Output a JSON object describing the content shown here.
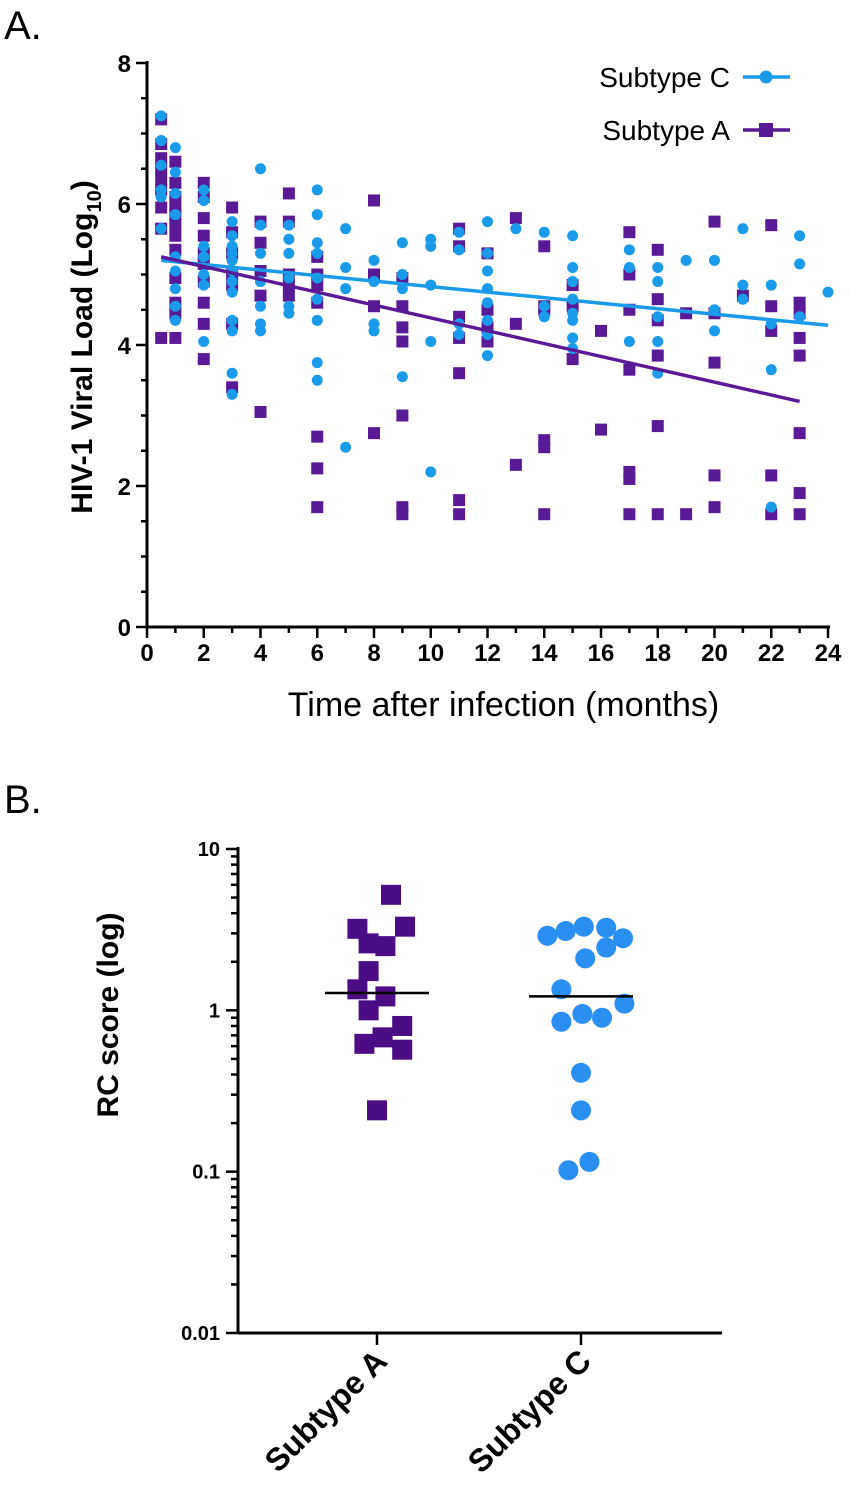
{
  "chart_data": [
    {
      "panel": "A.",
      "type": "scatter",
      "xlabel": "Time after infection (months)",
      "ylabel_main": "HIV-1 Viral Load (Log",
      "ylabel_sub": "10",
      "ylabel_close": ")",
      "xlim": [
        0,
        24
      ],
      "ylim": [
        0,
        8
      ],
      "xticks": [
        0,
        2,
        4,
        6,
        8,
        10,
        12,
        14,
        16,
        18,
        20,
        22,
        24
      ],
      "yticks": [
        0,
        2,
        4,
        6,
        8
      ],
      "legend_position": "top-right",
      "colors": {
        "subtype_c": "#1a9bea",
        "subtype_a": "#5a1a96"
      },
      "series": [
        {
          "name": "Subtype C",
          "marker": "circle",
          "points": [
            [
              0.5,
              7.25
            ],
            [
              0.5,
              6.9
            ],
            [
              0.5,
              6.55
            ],
            [
              0.5,
              6.2
            ],
            [
              0.5,
              6.1
            ],
            [
              0.5,
              5.65
            ],
            [
              1,
              6.8
            ],
            [
              1,
              6.45
            ],
            [
              1,
              6.15
            ],
            [
              1,
              5.85
            ],
            [
              1,
              5.25
            ],
            [
              1,
              5.05
            ],
            [
              1,
              4.8
            ],
            [
              1,
              4.55
            ],
            [
              1,
              4.35
            ],
            [
              2,
              6.2
            ],
            [
              2,
              6.05
            ],
            [
              2,
              5.4
            ],
            [
              2,
              5.25
            ],
            [
              2,
              5.0
            ],
            [
              2,
              4.85
            ],
            [
              2,
              4.05
            ],
            [
              3,
              5.75
            ],
            [
              3,
              5.55
            ],
            [
              3,
              5.4
            ],
            [
              3,
              5.3
            ],
            [
              3,
              5.2
            ],
            [
              3,
              5.05
            ],
            [
              3,
              4.9
            ],
            [
              3,
              4.75
            ],
            [
              3,
              4.35
            ],
            [
              3,
              4.2
            ],
            [
              3,
              3.6
            ],
            [
              3,
              3.3
            ],
            [
              4,
              6.5
            ],
            [
              4,
              5.7
            ],
            [
              4,
              5.3
            ],
            [
              4,
              4.9
            ],
            [
              4,
              4.55
            ],
            [
              4,
              4.3
            ],
            [
              4,
              4.2
            ],
            [
              5,
              5.7
            ],
            [
              5,
              5.5
            ],
            [
              5,
              5.3
            ],
            [
              5,
              4.95
            ],
            [
              5,
              4.55
            ],
            [
              5,
              4.45
            ],
            [
              6,
              6.2
            ],
            [
              6,
              5.85
            ],
            [
              6,
              5.45
            ],
            [
              6,
              5.3
            ],
            [
              6,
              4.95
            ],
            [
              6,
              4.65
            ],
            [
              6,
              4.35
            ],
            [
              6,
              3.75
            ],
            [
              6,
              3.5
            ],
            [
              7,
              5.65
            ],
            [
              7,
              5.1
            ],
            [
              7,
              4.8
            ],
            [
              7,
              2.55
            ],
            [
              8,
              5.2
            ],
            [
              8,
              4.9
            ],
            [
              8,
              4.3
            ],
            [
              8,
              4.2
            ],
            [
              9,
              5.45
            ],
            [
              9,
              5.0
            ],
            [
              9,
              4.8
            ],
            [
              9,
              3.55
            ],
            [
              10,
              5.5
            ],
            [
              10,
              5.4
            ],
            [
              10,
              4.85
            ],
            [
              10,
              4.05
            ],
            [
              10,
              2.2
            ],
            [
              11,
              5.6
            ],
            [
              11,
              5.35
            ],
            [
              11,
              4.3
            ],
            [
              11,
              4.15
            ],
            [
              12,
              5.75
            ],
            [
              12,
              5.3
            ],
            [
              12,
              5.05
            ],
            [
              12,
              4.8
            ],
            [
              12,
              4.6
            ],
            [
              12,
              4.35
            ],
            [
              12,
              4.15
            ],
            [
              12,
              3.85
            ],
            [
              13,
              5.65
            ],
            [
              14,
              5.6
            ],
            [
              14,
              4.55
            ],
            [
              14,
              4.4
            ],
            [
              15,
              5.55
            ],
            [
              15,
              5.1
            ],
            [
              15,
              4.9
            ],
            [
              15,
              4.65
            ],
            [
              15,
              4.45
            ],
            [
              15,
              4.35
            ],
            [
              15,
              4.1
            ],
            [
              15,
              3.95
            ],
            [
              17,
              5.35
            ],
            [
              17,
              5.1
            ],
            [
              17,
              4.05
            ],
            [
              18,
              5.1
            ],
            [
              18,
              4.9
            ],
            [
              18,
              4.4
            ],
            [
              18,
              4.05
            ],
            [
              18,
              3.6
            ],
            [
              19,
              5.2
            ],
            [
              20,
              5.2
            ],
            [
              20,
              4.5
            ],
            [
              20,
              4.2
            ],
            [
              21,
              5.65
            ],
            [
              21,
              4.85
            ],
            [
              21,
              4.65
            ],
            [
              22,
              4.85
            ],
            [
              22,
              4.3
            ],
            [
              22,
              3.65
            ],
            [
              22,
              1.7
            ],
            [
              23,
              5.55
            ],
            [
              23,
              5.15
            ],
            [
              23,
              4.4
            ],
            [
              24,
              4.75
            ]
          ],
          "trend": {
            "x": [
              0.5,
              24
            ],
            "y": [
              5.2,
              4.28
            ]
          }
        },
        {
          "name": "Subtype A",
          "marker": "square",
          "points": [
            [
              0.5,
              7.2
            ],
            [
              0.5,
              6.85
            ],
            [
              0.5,
              6.65
            ],
            [
              0.5,
              6.5
            ],
            [
              0.5,
              6.35
            ],
            [
              0.5,
              6.2
            ],
            [
              0.5,
              5.95
            ],
            [
              0.5,
              5.65
            ],
            [
              0.5,
              4.1
            ],
            [
              1,
              6.6
            ],
            [
              1,
              6.3
            ],
            [
              1,
              6.1
            ],
            [
              1,
              5.95
            ],
            [
              1,
              5.85
            ],
            [
              1,
              5.7
            ],
            [
              1,
              5.55
            ],
            [
              1,
              5.35
            ],
            [
              1,
              4.95
            ],
            [
              1,
              4.6
            ],
            [
              1,
              4.45
            ],
            [
              1,
              4.1
            ],
            [
              2,
              6.3
            ],
            [
              2,
              6.1
            ],
            [
              2,
              5.8
            ],
            [
              2,
              5.55
            ],
            [
              2,
              5.3
            ],
            [
              2,
              5.15
            ],
            [
              2,
              4.9
            ],
            [
              2,
              4.6
            ],
            [
              2,
              4.3
            ],
            [
              2,
              3.8
            ],
            [
              3,
              5.95
            ],
            [
              3,
              5.6
            ],
            [
              3,
              5.3
            ],
            [
              3,
              5.0
            ],
            [
              3,
              4.85
            ],
            [
              3,
              4.3
            ],
            [
              3,
              3.4
            ],
            [
              4,
              5.75
            ],
            [
              4,
              5.45
            ],
            [
              4,
              5.05
            ],
            [
              4,
              4.7
            ],
            [
              4,
              3.05
            ],
            [
              5,
              6.15
            ],
            [
              5,
              5.75
            ],
            [
              5,
              5.0
            ],
            [
              5,
              4.85
            ],
            [
              5,
              4.7
            ],
            [
              6,
              5.25
            ],
            [
              6,
              5.0
            ],
            [
              6,
              4.85
            ],
            [
              6,
              4.6
            ],
            [
              6,
              2.7
            ],
            [
              6,
              2.25
            ],
            [
              6,
              1.7
            ],
            [
              8,
              6.05
            ],
            [
              8,
              5.0
            ],
            [
              8,
              4.55
            ],
            [
              8,
              2.75
            ],
            [
              9,
              4.95
            ],
            [
              9,
              4.55
            ],
            [
              9,
              4.25
            ],
            [
              9,
              4.05
            ],
            [
              9,
              3.0
            ],
            [
              9,
              1.7
            ],
            [
              9,
              1.6
            ],
            [
              11,
              5.65
            ],
            [
              11,
              5.4
            ],
            [
              11,
              4.4
            ],
            [
              11,
              4.1
            ],
            [
              11,
              3.6
            ],
            [
              11,
              1.8
            ],
            [
              11,
              1.6
            ],
            [
              12,
              5.3
            ],
            [
              12,
              4.5
            ],
            [
              12,
              4.25
            ],
            [
              12,
              4.05
            ],
            [
              13,
              5.8
            ],
            [
              13,
              4.3
            ],
            [
              13,
              2.3
            ],
            [
              14,
              5.4
            ],
            [
              14,
              4.55
            ],
            [
              14,
              4.5
            ],
            [
              14,
              2.65
            ],
            [
              14,
              2.55
            ],
            [
              14,
              1.6
            ],
            [
              15,
              4.85
            ],
            [
              15,
              4.55
            ],
            [
              15,
              3.8
            ],
            [
              16,
              4.2
            ],
            [
              16,
              2.8
            ],
            [
              17,
              5.6
            ],
            [
              17,
              5.0
            ],
            [
              17,
              4.5
            ],
            [
              17,
              3.65
            ],
            [
              17,
              2.2
            ],
            [
              17,
              2.1
            ],
            [
              17,
              1.6
            ],
            [
              18,
              5.35
            ],
            [
              18,
              4.65
            ],
            [
              18,
              4.35
            ],
            [
              18,
              3.85
            ],
            [
              18,
              2.85
            ],
            [
              18,
              1.6
            ],
            [
              19,
              4.45
            ],
            [
              19,
              1.6
            ],
            [
              20,
              5.75
            ],
            [
              20,
              4.45
            ],
            [
              20,
              3.75
            ],
            [
              20,
              2.15
            ],
            [
              20,
              1.7
            ],
            [
              21,
              4.7
            ],
            [
              22,
              5.7
            ],
            [
              22,
              4.55
            ],
            [
              22,
              4.2
            ],
            [
              22,
              2.15
            ],
            [
              22,
              1.6
            ],
            [
              23,
              4.6
            ],
            [
              23,
              4.45
            ],
            [
              23,
              4.1
            ],
            [
              23,
              3.85
            ],
            [
              23,
              2.75
            ],
            [
              23,
              1.9
            ],
            [
              23,
              1.6
            ]
          ],
          "trend": {
            "x": [
              0.5,
              23
            ],
            "y": [
              5.25,
              3.2
            ]
          }
        }
      ]
    },
    {
      "panel": "B.",
      "type": "scatter",
      "ylabel": "RC score (log)",
      "yscale": "log",
      "ylim": [
        0.01,
        10
      ],
      "yticks": [
        0.01,
        0.1,
        1,
        10
      ],
      "ytick_labels": [
        "0.01",
        "0.1",
        "1",
        "10"
      ],
      "categories": [
        "Subtype A",
        "Subtype C"
      ],
      "colors": {
        "subtype_a": "#4b0c84",
        "subtype_c": "#2a8ef2"
      },
      "groups": [
        {
          "name": "Subtype A",
          "marker": "square",
          "median": 1.28,
          "points": [
            [
              -0.7,
              3.2
            ],
            [
              0.5,
              5.2
            ],
            [
              1.0,
              3.3
            ],
            [
              -0.3,
              2.6
            ],
            [
              0.3,
              2.5
            ],
            [
              -0.3,
              1.75
            ],
            [
              -0.7,
              1.35
            ],
            [
              0.3,
              1.22
            ],
            [
              -0.3,
              1.0
            ],
            [
              0.9,
              0.8
            ],
            [
              -0.45,
              0.62
            ],
            [
              0.2,
              0.68
            ],
            [
              0.9,
              0.57
            ],
            [
              0,
              0.24
            ]
          ]
        },
        {
          "name": "Subtype C",
          "marker": "circle",
          "median": 1.22,
          "points": [
            [
              -1.2,
              2.9
            ],
            [
              -0.55,
              3.1
            ],
            [
              0.1,
              3.3
            ],
            [
              0.9,
              3.25
            ],
            [
              1.5,
              2.8
            ],
            [
              0.9,
              2.45
            ],
            [
              0.15,
              2.1
            ],
            [
              -0.7,
              1.35
            ],
            [
              1.55,
              1.1
            ],
            [
              -0.7,
              0.85
            ],
            [
              0.05,
              0.95
            ],
            [
              0.75,
              0.9
            ],
            [
              0,
              0.41
            ],
            [
              0,
              0.24
            ],
            [
              -0.45,
              0.102
            ],
            [
              0.3,
              0.115
            ]
          ]
        }
      ]
    }
  ]
}
